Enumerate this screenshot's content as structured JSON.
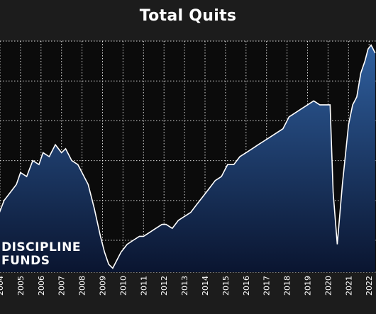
{
  "chart_data": {
    "type": "area",
    "title": "Total Quits",
    "xlabel": "",
    "ylabel": "",
    "x_ticks": [
      "2004",
      "2005",
      "2006",
      "2007",
      "2008",
      "2009",
      "2010",
      "2011",
      "2012",
      "2013",
      "2014",
      "2015",
      "2016",
      "2017",
      "2018",
      "2019",
      "2020",
      "2021",
      "2022"
    ],
    "grid": true,
    "colors": {
      "background": "#1c1c1c",
      "plot_bg": "#0b0b0b",
      "line": "#ffffff",
      "fill_top": "#2f5f9e",
      "fill_bottom": "#0a1530"
    },
    "series": [
      {
        "x": [
          2003.9,
          2004.2,
          2004.5,
          2004.8,
          2005.0,
          2005.3,
          2005.6,
          2005.9,
          2006.1,
          2006.4,
          2006.7,
          2007.0,
          2007.2,
          2007.5,
          2007.8,
          2008.0,
          2008.3,
          2008.6,
          2008.9,
          2009.1,
          2009.3,
          2009.5,
          2009.7,
          2009.9,
          2010.2,
          2010.5,
          2010.8,
          2011.0,
          2011.3,
          2011.6,
          2011.9,
          2012.1,
          2012.4,
          2012.7,
          2013.0,
          2013.3,
          2013.6,
          2013.9,
          2014.2,
          2014.5,
          2014.8,
          2015.1,
          2015.4,
          2015.7,
          2016.0,
          2016.3,
          2016.6,
          2016.9,
          2017.2,
          2017.5,
          2017.8,
          2018.1,
          2018.4,
          2018.7,
          2019.0,
          2019.3,
          2019.6,
          2019.9,
          2020.1,
          2020.25,
          2020.45,
          2020.7,
          2021.0,
          2021.2,
          2021.4,
          2021.6,
          2021.8,
          2021.95,
          2022.1,
          2022.3
        ],
        "y": [
          2.3,
          2.5,
          2.6,
          2.7,
          2.85,
          2.8,
          3.0,
          2.95,
          3.1,
          3.05,
          3.2,
          3.1,
          3.15,
          3.0,
          2.95,
          2.85,
          2.7,
          2.4,
          2.05,
          1.85,
          1.7,
          1.65,
          1.75,
          1.85,
          1.95,
          2.0,
          2.05,
          2.05,
          2.1,
          2.15,
          2.2,
          2.2,
          2.15,
          2.25,
          2.3,
          2.35,
          2.45,
          2.55,
          2.65,
          2.75,
          2.8,
          2.95,
          2.95,
          3.05,
          3.1,
          3.15,
          3.2,
          3.25,
          3.3,
          3.35,
          3.4,
          3.55,
          3.6,
          3.65,
          3.7,
          3.75,
          3.7,
          3.7,
          3.7,
          2.6,
          1.95,
          2.7,
          3.45,
          3.7,
          3.8,
          4.1,
          4.25,
          4.4,
          4.45,
          4.35
        ]
      }
    ]
  },
  "branding": {
    "line1": "DISCIPLINE",
    "line2": "FUNDS"
  }
}
